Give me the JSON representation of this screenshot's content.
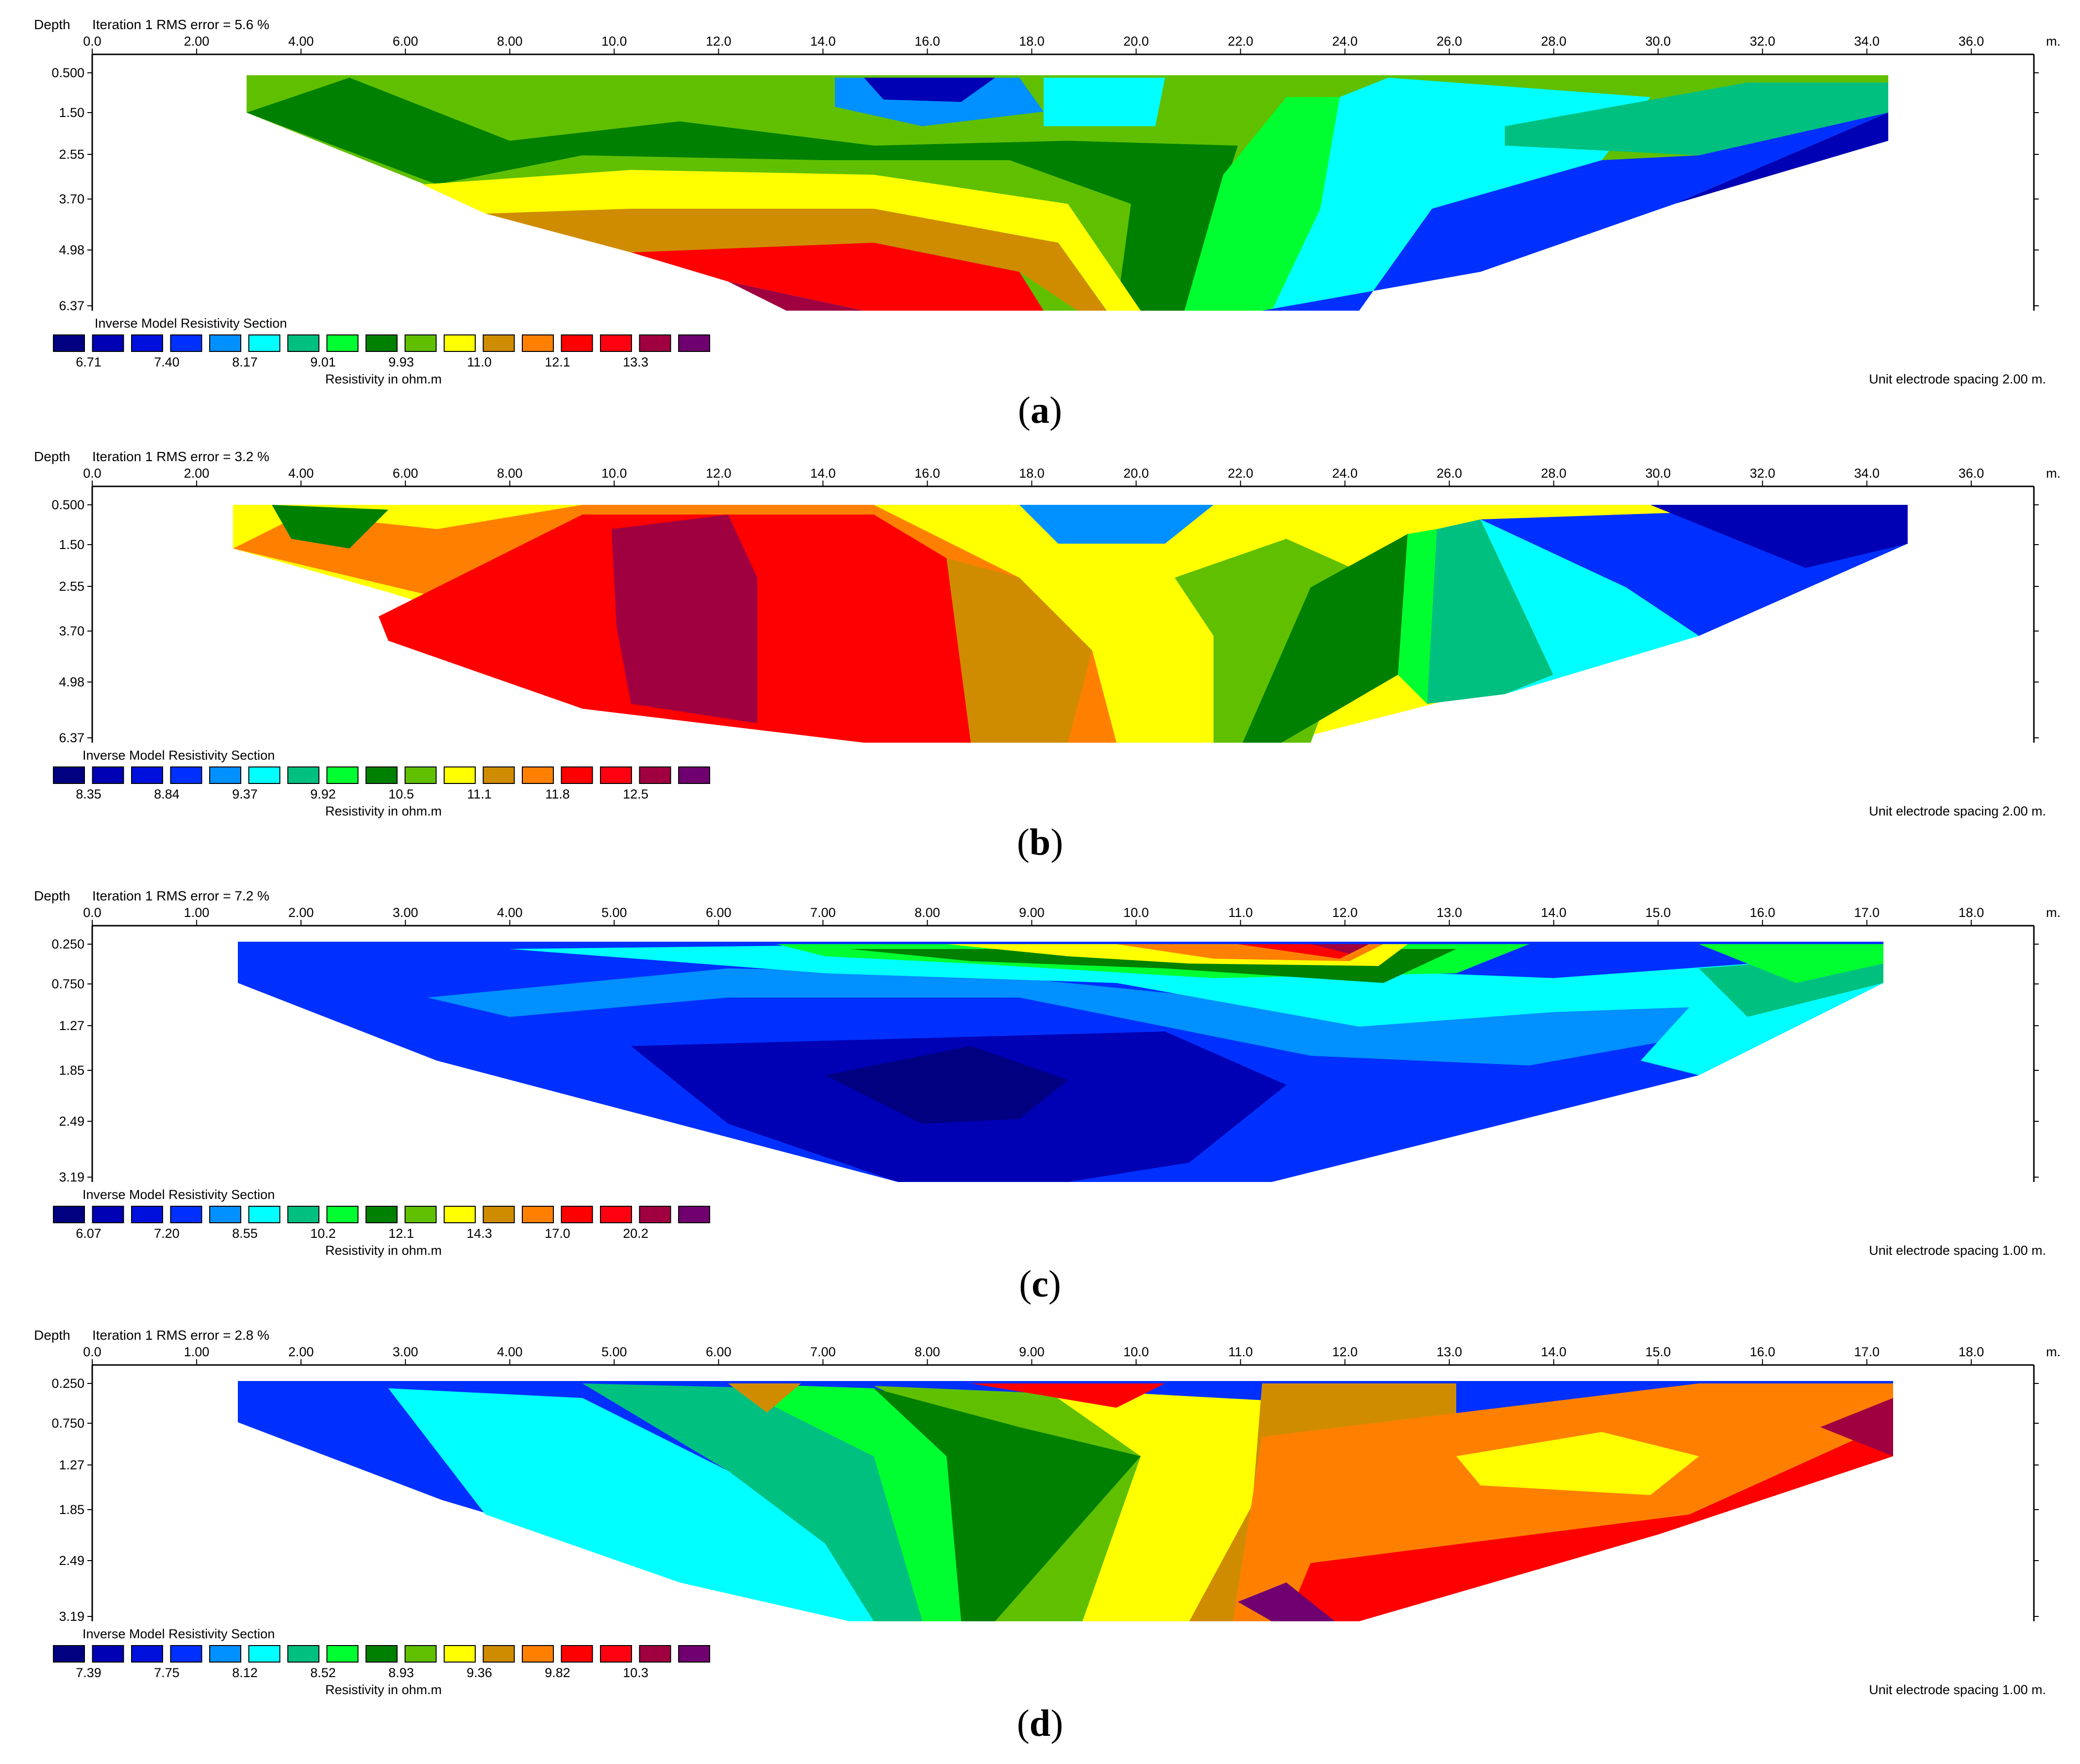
{
  "colors": {
    "palette": [
      "#000080",
      "#0000b4",
      "#0010dc",
      "#0030ff",
      "#0090ff",
      "#00ffff",
      "#00c080",
      "#00ff30",
      "#008000",
      "#60c000",
      "#ffff00",
      "#d08c00",
      "#ff8000",
      "#ff0000",
      "#ff0010",
      "#a00040",
      "#700070"
    ],
    "caption": "#000000"
  },
  "chart_data": [
    {
      "type": "heatmap",
      "panel_label": "a",
      "depth_label": "Depth",
      "iteration_text": "Iteration 1 RMS error = 5.6 %",
      "x_ticks": [
        "0.0",
        "2.00",
        "4.00",
        "6.00",
        "8.00",
        "10.0",
        "12.0",
        "14.0",
        "16.0",
        "18.0",
        "20.0",
        "22.0",
        "24.0",
        "26.0",
        "28.0",
        "30.0",
        "32.0",
        "34.0",
        "36.0"
      ],
      "x_unit": "m.",
      "depth_ticks": [
        "0.500",
        "1.50",
        "2.55",
        "3.70",
        "4.98",
        "6.37"
      ],
      "section_title": "Inverse Model Resistivity Section",
      "legend_values": [
        "6.71",
        "7.40",
        "8.17",
        "9.01",
        "9.93",
        "11.0",
        "12.1",
        "13.3"
      ],
      "legend_label": "Resistivity in ohm.m",
      "spacing_note": "Unit electrode spacing 2.00 m."
    },
    {
      "type": "heatmap",
      "panel_label": "b",
      "depth_label": "Depth",
      "iteration_text": "Iteration 1 RMS error = 3.2 %",
      "x_ticks": [
        "0.0",
        "2.00",
        "4.00",
        "6.00",
        "8.00",
        "10.0",
        "12.0",
        "14.0",
        "16.0",
        "18.0",
        "20.0",
        "22.0",
        "24.0",
        "26.0",
        "28.0",
        "30.0",
        "32.0",
        "34.0",
        "36.0"
      ],
      "x_unit": "m.",
      "depth_ticks": [
        "0.500",
        "1.50",
        "2.55",
        "3.70",
        "4.98",
        "6.37"
      ],
      "section_title": "Inverse Model Resistivity Section",
      "legend_values": [
        "8.35",
        "8.84",
        "9.37",
        "9.92",
        "10.5",
        "11.1",
        "11.8",
        "12.5"
      ],
      "legend_label": "Resistivity in ohm.m",
      "spacing_note": "Unit electrode spacing 2.00 m."
    },
    {
      "type": "heatmap",
      "panel_label": "c",
      "depth_label": "Depth",
      "iteration_text": "Iteration 1 RMS error = 7.2 %",
      "x_ticks": [
        "0.0",
        "1.00",
        "2.00",
        "3.00",
        "4.00",
        "5.00",
        "6.00",
        "7.00",
        "8.00",
        "9.00",
        "10.0",
        "11.0",
        "12.0",
        "13.0",
        "14.0",
        "15.0",
        "16.0",
        "17.0",
        "18.0"
      ],
      "x_unit": "m.",
      "depth_ticks": [
        "0.250",
        "0.750",
        "1.27",
        "1.85",
        "2.49",
        "3.19"
      ],
      "section_title": "Inverse Model Resistivity Section",
      "legend_values": [
        "6.07",
        "7.20",
        "8.55",
        "10.2",
        "12.1",
        "14.3",
        "17.0",
        "20.2"
      ],
      "legend_label": "Resistivity in ohm.m",
      "spacing_note": "Unit electrode spacing 1.00 m."
    },
    {
      "type": "heatmap",
      "panel_label": "d",
      "depth_label": "Depth",
      "iteration_text": "Iteration 1 RMS error = 2.8 %",
      "x_ticks": [
        "0.0",
        "1.00",
        "2.00",
        "3.00",
        "4.00",
        "5.00",
        "6.00",
        "7.00",
        "8.00",
        "9.00",
        "10.0",
        "11.0",
        "12.0",
        "13.0",
        "14.0",
        "15.0",
        "16.0",
        "17.0",
        "18.0"
      ],
      "x_unit": "m.",
      "depth_ticks": [
        "0.250",
        "0.750",
        "1.27",
        "1.85",
        "2.49",
        "3.19"
      ],
      "section_title": "Inverse Model Resistivity Section",
      "legend_values": [
        "7.39",
        "7.75",
        "8.12",
        "8.52",
        "8.93",
        "9.36",
        "9.82",
        "10.3"
      ],
      "legend_label": "Resistivity in ohm.m",
      "spacing_note": "Unit electrode spacing 1.00 m."
    }
  ]
}
